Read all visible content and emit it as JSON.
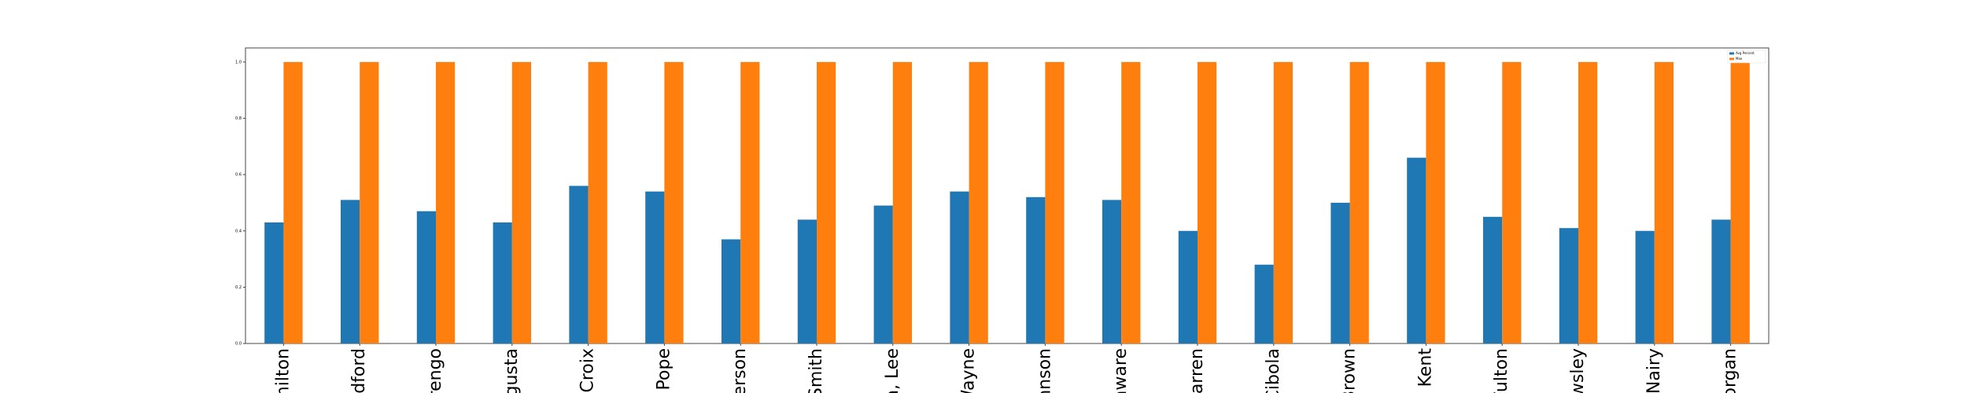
{
  "chart_data": {
    "type": "bar",
    "categories": [
      "milton",
      "odford",
      "rengo",
      "gusta",
      "Croix",
      "Pope",
      "erson",
      "Smith",
      "a, Lee",
      "Wayne",
      "nnson",
      "aware",
      "Warren",
      "Cibola",
      "Brown",
      ", Kent",
      "Fulton",
      "wsley",
      "cNairy",
      "organ"
    ],
    "series": [
      {
        "name": "Avg Percent",
        "color": "#1f77b4",
        "values": [
          0.43,
          0.51,
          0.47,
          0.43,
          0.56,
          0.54,
          0.37,
          0.44,
          0.49,
          0.54,
          0.52,
          0.51,
          0.4,
          0.28,
          0.5,
          0.66,
          0.45,
          0.41,
          0.4,
          0.44
        ]
      },
      {
        "name": "Max",
        "color": "#ff7f0e",
        "values": [
          1,
          1,
          1,
          1,
          1,
          1,
          1,
          1,
          1,
          1,
          1,
          1,
          1,
          1,
          1,
          1,
          1,
          1,
          1,
          1
        ]
      }
    ],
    "ylim": [
      0,
      1.05
    ],
    "yticks": [
      {
        "value": 0,
        "label": "0.0"
      },
      {
        "value": 0.2,
        "label": "0.2"
      },
      {
        "value": 0.4,
        "label": "0.4"
      },
      {
        "value": 0.6,
        "label": "0.6"
      },
      {
        "value": 0.8,
        "label": "0.8"
      },
      {
        "value": 1,
        "label": "1.0"
      }
    ],
    "legend": "upper right"
  }
}
